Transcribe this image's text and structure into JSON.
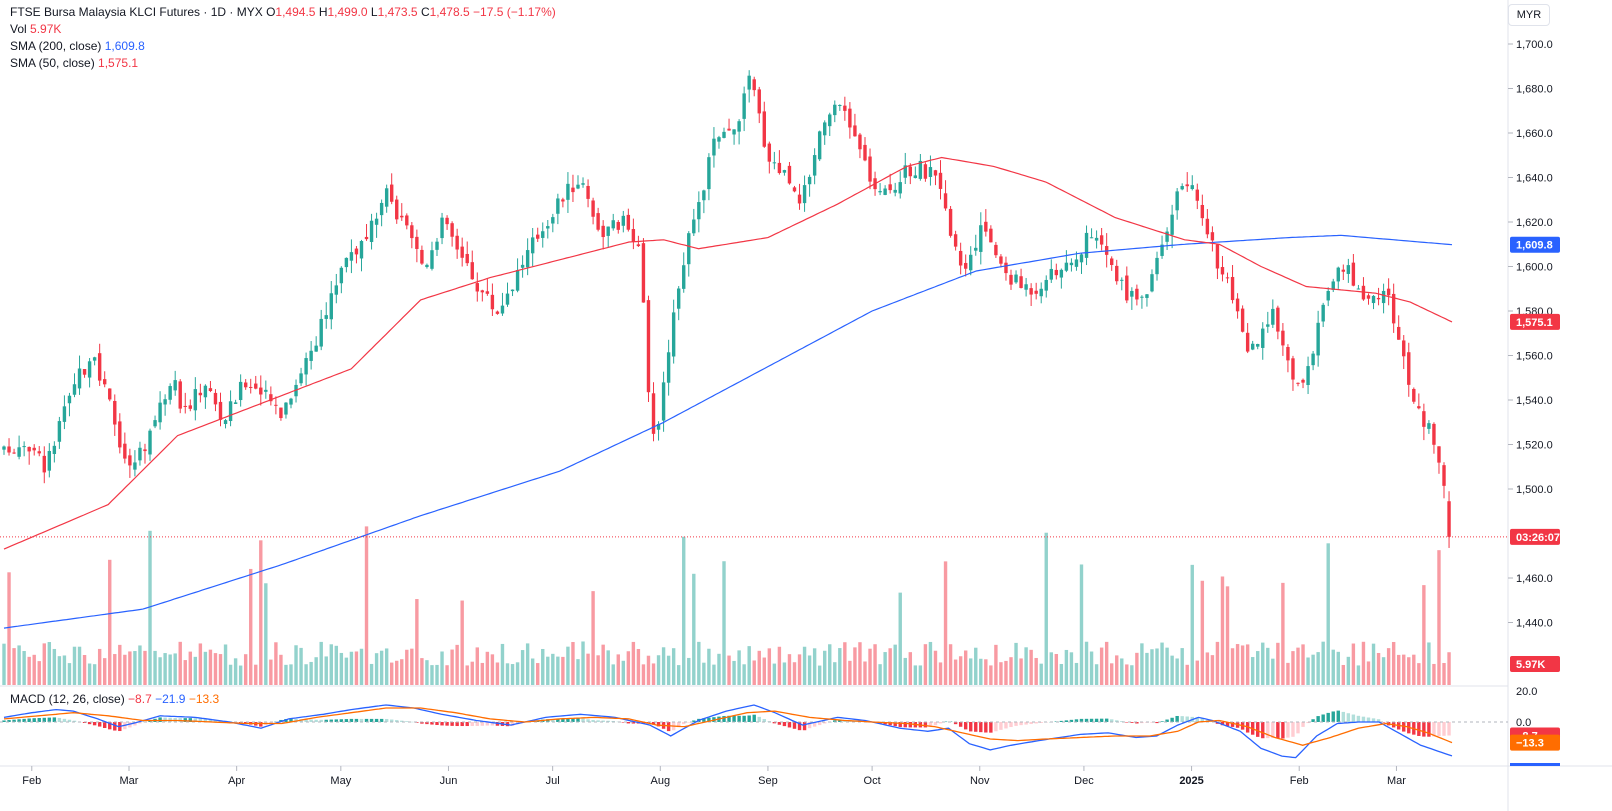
{
  "header": {
    "symbol": "FTSE Bursa Malaysia KLCI Futures · 1D · MYX",
    "o_label": "O",
    "o": "1,494.5",
    "h_label": "H",
    "h": "1,499.0",
    "l_label": "L",
    "l": "1,473.5",
    "c_label": "C",
    "c": "1,478.5",
    "change": "−17.5 (−1.17%)"
  },
  "vol": {
    "label": "Vol",
    "value": "5.97K"
  },
  "sma200": {
    "label": "SMA (200, close)",
    "value": "1,609.8"
  },
  "sma50": {
    "label": "SMA (50, close)",
    "value": "1,575.1"
  },
  "macd": {
    "label": "MACD (12, 26, close)",
    "hist": "−8.7",
    "macd": "−21.9",
    "signal": "−13.3"
  },
  "currency": "MYR",
  "countdown": "03:26:07",
  "colors": {
    "up": "#26a69a",
    "down": "#f23645",
    "sma200": "#2962ff",
    "sma50": "#f23645",
    "macd": "#2962ff",
    "signal": "#ff6d00"
  },
  "chart_data": {
    "type": "candlestick",
    "y_ticks": [
      "1,700.0",
      "1,680.0",
      "1,660.0",
      "1,640.0",
      "1,620.0",
      "1,600.0",
      "1,580.0",
      "1,560.0",
      "1,540.0",
      "1,520.0",
      "1,500.0",
      "1,460.0",
      "1,440.0"
    ],
    "ylim": [
      1436,
      1706
    ],
    "x_ticks": [
      {
        "label": "Feb",
        "day": 8
      },
      {
        "label": "Mar",
        "day": 36
      },
      {
        "label": "Apr",
        "day": 67
      },
      {
        "label": "May",
        "day": 97
      },
      {
        "label": "Jun",
        "day": 128
      },
      {
        "label": "Jul",
        "day": 158
      },
      {
        "label": "Aug",
        "day": 189
      },
      {
        "label": "Sep",
        "day": 220
      },
      {
        "label": "Oct",
        "day": 250
      },
      {
        "label": "Nov",
        "day": 281
      },
      {
        "label": "Dec",
        "day": 311
      },
      {
        "label": "2025",
        "day": 342
      },
      {
        "label": "Feb",
        "day": 373
      },
      {
        "label": "Mar",
        "day": 401
      }
    ],
    "xlim": [
      0,
      417
    ],
    "price_anchors": [
      [
        0,
        1516
      ],
      [
        6,
        1522
      ],
      [
        12,
        1510
      ],
      [
        20,
        1545
      ],
      [
        25,
        1560
      ],
      [
        30,
        1540
      ],
      [
        36,
        1508
      ],
      [
        42,
        1525
      ],
      [
        48,
        1550
      ],
      [
        52,
        1535
      ],
      [
        58,
        1548
      ],
      [
        63,
        1530
      ],
      [
        70,
        1550
      ],
      [
        76,
        1540
      ],
      [
        80,
        1535
      ],
      [
        86,
        1555
      ],
      [
        92,
        1575
      ],
      [
        98,
        1605
      ],
      [
        104,
        1610
      ],
      [
        110,
        1632
      ],
      [
        116,
        1615
      ],
      [
        121,
        1600
      ],
      [
        126,
        1620
      ],
      [
        131,
        1608
      ],
      [
        137,
        1590
      ],
      [
        142,
        1580
      ],
      [
        148,
        1598
      ],
      [
        154,
        1615
      ],
      [
        160,
        1630
      ],
      [
        166,
        1640
      ],
      [
        172,
        1615
      ],
      [
        178,
        1620
      ],
      [
        183,
        1612
      ],
      [
        186,
        1530
      ],
      [
        188,
        1525
      ],
      [
        191,
        1560
      ],
      [
        195,
        1600
      ],
      [
        200,
        1625
      ],
      [
        204,
        1655
      ],
      [
        210,
        1660
      ],
      [
        215,
        1685
      ],
      [
        220,
        1650
      ],
      [
        226,
        1640
      ],
      [
        230,
        1630
      ],
      [
        236,
        1668
      ],
      [
        242,
        1670
      ],
      [
        247,
        1650
      ],
      [
        252,
        1630
      ],
      [
        258,
        1640
      ],
      [
        263,
        1645
      ],
      [
        268,
        1640
      ],
      [
        272,
        1620
      ],
      [
        277,
        1595
      ],
      [
        282,
        1620
      ],
      [
        287,
        1600
      ],
      [
        292,
        1592
      ],
      [
        297,
        1590
      ],
      [
        302,
        1600
      ],
      [
        307,
        1598
      ],
      [
        312,
        1612
      ],
      [
        317,
        1608
      ],
      [
        322,
        1590
      ],
      [
        327,
        1585
      ],
      [
        331,
        1595
      ],
      [
        336,
        1625
      ],
      [
        340,
        1640
      ],
      [
        345,
        1625
      ],
      [
        350,
        1600
      ],
      [
        354,
        1585
      ],
      [
        358,
        1560
      ],
      [
        363,
        1570
      ],
      [
        366,
        1580
      ],
      [
        370,
        1555
      ],
      [
        374,
        1545
      ],
      [
        378,
        1570
      ],
      [
        382,
        1590
      ],
      [
        386,
        1600
      ],
      [
        390,
        1590
      ],
      [
        394,
        1585
      ],
      [
        398,
        1590
      ],
      [
        402,
        1565
      ],
      [
        406,
        1540
      ],
      [
        410,
        1528
      ],
      [
        414,
        1510
      ],
      [
        417,
        1478.5
      ]
    ],
    "sma200": [
      [
        0,
        1437.5
      ],
      [
        40,
        1446
      ],
      [
        80,
        1466
      ],
      [
        120,
        1488
      ],
      [
        160,
        1508
      ],
      [
        190,
        1530
      ],
      [
        220,
        1555
      ],
      [
        250,
        1580
      ],
      [
        280,
        1598
      ],
      [
        310,
        1606
      ],
      [
        340,
        1610
      ],
      [
        370,
        1613
      ],
      [
        385,
        1614
      ],
      [
        417,
        1609.8
      ]
    ],
    "sma50": [
      [
        0,
        1473
      ],
      [
        30,
        1493
      ],
      [
        50,
        1524
      ],
      [
        80,
        1542
      ],
      [
        100,
        1554
      ],
      [
        120,
        1585
      ],
      [
        140,
        1595
      ],
      [
        160,
        1603
      ],
      [
        180,
        1611
      ],
      [
        190,
        1612
      ],
      [
        200,
        1608
      ],
      [
        220,
        1613
      ],
      [
        240,
        1628
      ],
      [
        260,
        1645
      ],
      [
        270,
        1649
      ],
      [
        285,
        1645
      ],
      [
        300,
        1638
      ],
      [
        320,
        1622
      ],
      [
        340,
        1612
      ],
      [
        350,
        1610
      ],
      [
        362,
        1600
      ],
      [
        375,
        1591
      ],
      [
        395,
        1588
      ],
      [
        405,
        1584
      ],
      [
        417,
        1575.1
      ]
    ],
    "macd_ticks": [
      "20.0",
      "0.0"
    ],
    "macd_lim": [
      -36,
      26
    ],
    "macd_line": [
      [
        0,
        3
      ],
      [
        8,
        6
      ],
      [
        15,
        8
      ],
      [
        20,
        7
      ],
      [
        27,
        2
      ],
      [
        33,
        -3
      ],
      [
        37,
        -1
      ],
      [
        45,
        4
      ],
      [
        55,
        3
      ],
      [
        65,
        0
      ],
      [
        74,
        -4
      ],
      [
        82,
        2
      ],
      [
        92,
        5
      ],
      [
        100,
        8
      ],
      [
        110,
        11
      ],
      [
        118,
        9
      ],
      [
        126,
        5
      ],
      [
        136,
        1
      ],
      [
        146,
        -2
      ],
      [
        156,
        3
      ],
      [
        166,
        5
      ],
      [
        176,
        3
      ],
      [
        186,
        -2
      ],
      [
        192,
        -9
      ],
      [
        200,
        1
      ],
      [
        208,
        7
      ],
      [
        216,
        11
      ],
      [
        222,
        6
      ],
      [
        230,
        -2
      ],
      [
        240,
        3
      ],
      [
        248,
        1
      ],
      [
        258,
        -4
      ],
      [
        266,
        -6
      ],
      [
        272,
        -4
      ],
      [
        278,
        -14
      ],
      [
        284,
        -18
      ],
      [
        290,
        -15
      ],
      [
        298,
        -12
      ],
      [
        304,
        -10
      ],
      [
        310,
        -8
      ],
      [
        318,
        -7
      ],
      [
        326,
        -10
      ],
      [
        332,
        -9
      ],
      [
        338,
        -2
      ],
      [
        344,
        3
      ],
      [
        348,
        1
      ],
      [
        356,
        -6
      ],
      [
        362,
        -17
      ],
      [
        368,
        -22
      ],
      [
        372,
        -23
      ],
      [
        378,
        -9
      ],
      [
        384,
        -1
      ],
      [
        390,
        0
      ],
      [
        396,
        0
      ],
      [
        400,
        -5
      ],
      [
        408,
        -15
      ],
      [
        417,
        -21.9
      ]
    ],
    "signal_line": [
      [
        0,
        2
      ],
      [
        10,
        4
      ],
      [
        20,
        6
      ],
      [
        30,
        4
      ],
      [
        40,
        1
      ],
      [
        50,
        1
      ],
      [
        60,
        0
      ],
      [
        70,
        -1
      ],
      [
        80,
        -1
      ],
      [
        90,
        3
      ],
      [
        100,
        6
      ],
      [
        110,
        9
      ],
      [
        120,
        9
      ],
      [
        130,
        6
      ],
      [
        140,
        2
      ],
      [
        150,
        0
      ],
      [
        160,
        2
      ],
      [
        170,
        3
      ],
      [
        180,
        2
      ],
      [
        188,
        -2
      ],
      [
        196,
        -3
      ],
      [
        204,
        1
      ],
      [
        214,
        6
      ],
      [
        222,
        7
      ],
      [
        232,
        3
      ],
      [
        242,
        1
      ],
      [
        250,
        0
      ],
      [
        260,
        -1
      ],
      [
        268,
        -3
      ],
      [
        276,
        -7
      ],
      [
        284,
        -11
      ],
      [
        292,
        -12
      ],
      [
        300,
        -11
      ],
      [
        310,
        -10
      ],
      [
        320,
        -9
      ],
      [
        330,
        -9
      ],
      [
        338,
        -6
      ],
      [
        344,
        0
      ],
      [
        350,
        1
      ],
      [
        358,
        -3
      ],
      [
        366,
        -10
      ],
      [
        374,
        -15
      ],
      [
        382,
        -10
      ],
      [
        390,
        -4
      ],
      [
        398,
        -1
      ],
      [
        404,
        -3
      ],
      [
        410,
        -7
      ],
      [
        417,
        -13.3
      ]
    ]
  }
}
